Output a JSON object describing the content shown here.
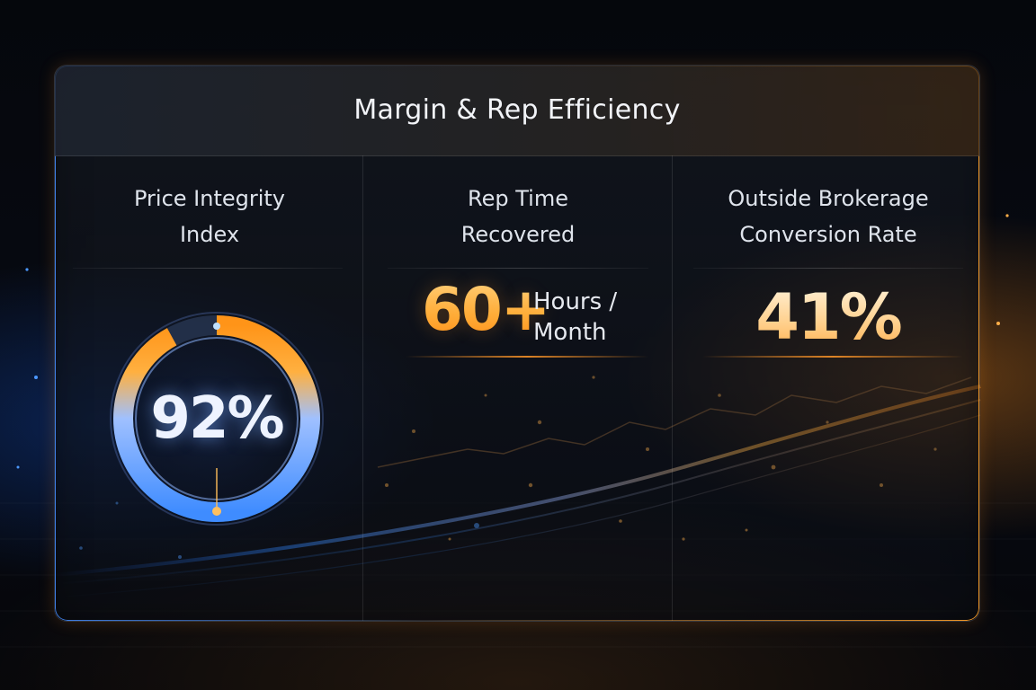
{
  "dashboard": {
    "title": "Margin & Rep Efficiency",
    "metrics": [
      {
        "label_line1": "Price Integrity",
        "label_line2": "Index",
        "value": "92%",
        "gauge_level_percent": 92
      },
      {
        "label_line1": "Rep Time",
        "label_line2": "Recovered",
        "value": "60+",
        "unit_line1": "Hours /",
        "unit_line2": "Month"
      },
      {
        "label_line1": "Outside Brokerage",
        "label_line2": "Conversion Rate",
        "value": "41%"
      }
    ]
  },
  "colors": {
    "accent_orange": "#ffa531",
    "accent_blue": "#3f8cff",
    "background": "#06080e"
  }
}
